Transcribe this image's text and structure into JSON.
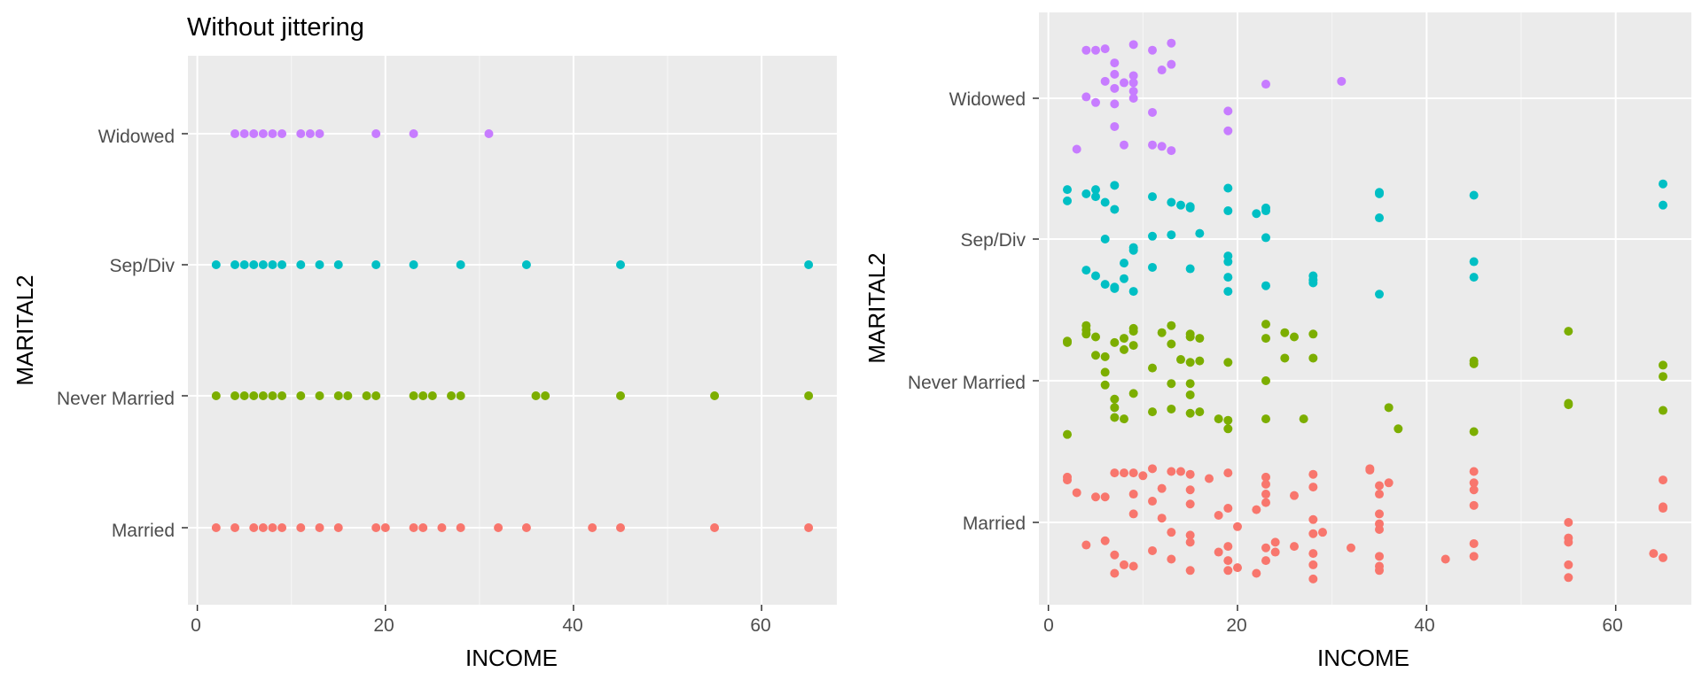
{
  "chart_data": [
    {
      "type": "scatter",
      "title": "Without jittering",
      "xlabel": "INCOME",
      "ylabel": "MARITAL2",
      "xlim": [
        -1,
        68
      ],
      "x_ticks": [
        "0",
        "20",
        "40",
        "60"
      ],
      "categories": [
        "Married",
        "Never Married",
        "Sep/Div",
        "Widowed"
      ],
      "grid": true,
      "legend": "none",
      "series": [
        {
          "category": "Married",
          "color": "#F8766D",
          "x": [
            2,
            4,
            6,
            7,
            8,
            9,
            11,
            13,
            15,
            19,
            20,
            23,
            24,
            26,
            28,
            32,
            35,
            42,
            45,
            55,
            65
          ]
        },
        {
          "category": "Never Married",
          "color": "#7CAE00",
          "x": [
            2,
            4,
            5,
            6,
            7,
            8,
            9,
            11,
            13,
            15,
            16,
            18,
            19,
            23,
            24,
            25,
            27,
            28,
            36,
            37,
            45,
            55,
            65
          ]
        },
        {
          "category": "Sep/Div",
          "color": "#00BFC4",
          "x": [
            2,
            4,
            5,
            6,
            7,
            8,
            9,
            11,
            13,
            15,
            19,
            23,
            28,
            35,
            45,
            65
          ]
        },
        {
          "category": "Widowed",
          "color": "#C77CFF",
          "x": [
            4,
            5,
            6,
            7,
            8,
            9,
            11,
            12,
            13,
            19,
            23,
            31
          ]
        }
      ]
    },
    {
      "type": "scatter",
      "title": "",
      "xlabel": "INCOME",
      "ylabel": "MARITAL2",
      "xlim": [
        -1,
        68
      ],
      "x_ticks": [
        "0",
        "20",
        "40",
        "60"
      ],
      "categories": [
        "Married",
        "Never Married",
        "Sep/Div",
        "Widowed"
      ],
      "grid": true,
      "legend": "none",
      "jitter": 0.4,
      "series": [
        {
          "category": "Married",
          "color": "#F8766D",
          "x": [
            2,
            2,
            3,
            4,
            5,
            6,
            6,
            7,
            7,
            7,
            8,
            8,
            9,
            9,
            9,
            9,
            10,
            11,
            11,
            11,
            12,
            12,
            13,
            13,
            13,
            14,
            15,
            15,
            15,
            15,
            15,
            15,
            17,
            18,
            18,
            19,
            19,
            19,
            19,
            19,
            20,
            20,
            22,
            22,
            23,
            23,
            23,
            23,
            23,
            23,
            24,
            24,
            26,
            26,
            28,
            28,
            28,
            28,
            28,
            28,
            28,
            29,
            32,
            34,
            34,
            35,
            35,
            35,
            35,
            35,
            35,
            35,
            35,
            36,
            42,
            45,
            45,
            45,
            45,
            45,
            45,
            55,
            55,
            55,
            55,
            55,
            64,
            65,
            65,
            65,
            65
          ],
          "y_offset": [
            0.32,
            0.3,
            0.21,
            -0.16,
            0.18,
            -0.13,
            0.18,
            -0.36,
            -0.23,
            0.35,
            0.35,
            -0.3,
            -0.31,
            0.06,
            0.2,
            0.35,
            0.33,
            0.38,
            0.15,
            -0.2,
            0.24,
            0.03,
            0.36,
            -0.07,
            -0.26,
            0.36,
            0.13,
            0.34,
            0.23,
            -0.09,
            -0.14,
            -0.34,
            0.31,
            -0.21,
            0.05,
            0.35,
            -0.17,
            -0.27,
            0.1,
            -0.34,
            -0.03,
            -0.32,
            0.09,
            -0.36,
            0.32,
            0.27,
            0.2,
            0.14,
            -0.18,
            -0.27,
            -0.14,
            -0.21,
            0.19,
            -0.17,
            0.34,
            0.25,
            0.02,
            -0.08,
            -0.22,
            -0.3,
            -0.4,
            -0.07,
            -0.18,
            0.37,
            0.38,
            0.26,
            0.2,
            0.06,
            -0.01,
            -0.05,
            -0.24,
            -0.31,
            -0.34,
            0.28,
            -0.26,
            0.36,
            0.28,
            0.23,
            0.12,
            -0.15,
            -0.24,
            0.0,
            -0.11,
            -0.14,
            -0.3,
            -0.39,
            -0.22,
            0.3,
            0.1,
            0.11,
            -0.25
          ]
        },
        {
          "category": "Never Married",
          "color": "#7CAE00",
          "x": [
            2,
            2,
            2,
            4,
            4,
            4,
            5,
            5,
            6,
            6,
            6,
            7,
            7,
            7,
            7,
            8,
            8,
            8,
            9,
            9,
            9,
            9,
            11,
            11,
            12,
            13,
            13,
            13,
            13,
            14,
            15,
            15,
            15,
            15,
            15,
            15,
            16,
            16,
            16,
            18,
            19,
            19,
            19,
            23,
            23,
            23,
            23,
            25,
            25,
            26,
            27,
            28,
            28,
            36,
            37,
            45,
            45,
            45,
            55,
            55,
            55,
            65,
            65,
            65
          ],
          "y_offset": [
            0.28,
            0.27,
            -0.38,
            0.39,
            0.36,
            0.33,
            0.31,
            0.18,
            0.06,
            -0.03,
            0.17,
            0.27,
            -0.13,
            -0.19,
            -0.26,
            0.3,
            0.22,
            -0.27,
            0.37,
            0.25,
            0.35,
            -0.09,
            0.09,
            -0.22,
            0.34,
            0.39,
            0.26,
            -0.02,
            -0.2,
            0.15,
            0.33,
            0.31,
            0.13,
            -0.02,
            -0.1,
            -0.23,
            0.3,
            0.14,
            -0.22,
            -0.27,
            0.13,
            -0.28,
            -0.34,
            0.4,
            0.3,
            0.0,
            -0.27,
            0.34,
            0.16,
            0.31,
            -0.27,
            0.33,
            0.16,
            -0.19,
            -0.34,
            0.12,
            0.14,
            -0.36,
            0.35,
            -0.16,
            -0.17,
            0.11,
            0.03,
            -0.21
          ]
        },
        {
          "category": "Sep/Div",
          "color": "#00BFC4",
          "x": [
            2,
            2,
            4,
            4,
            5,
            5,
            5,
            6,
            6,
            6,
            7,
            7,
            7,
            7,
            8,
            8,
            9,
            9,
            9,
            11,
            11,
            11,
            13,
            13,
            14,
            15,
            15,
            15,
            16,
            19,
            19,
            19,
            19,
            19,
            19,
            22,
            23,
            23,
            23,
            23,
            28,
            28,
            28,
            35,
            35,
            35,
            35,
            45,
            45,
            45,
            65,
            65
          ],
          "y_offset": [
            0.35,
            0.27,
            -0.22,
            0.32,
            0.35,
            0.3,
            -0.26,
            0.26,
            -0.32,
            0.0,
            0.38,
            0.21,
            -0.34,
            -0.35,
            -0.17,
            -0.28,
            -0.06,
            -0.08,
            -0.37,
            0.3,
            -0.2,
            0.02,
            0.26,
            0.03,
            0.24,
            0.23,
            0.22,
            -0.21,
            0.04,
            0.36,
            0.2,
            -0.12,
            -0.16,
            -0.27,
            -0.37,
            0.18,
            0.2,
            0.01,
            0.22,
            -0.33,
            -0.26,
            -0.29,
            -0.31,
            0.33,
            0.32,
            0.15,
            -0.39,
            0.31,
            -0.16,
            -0.27,
            0.39,
            0.24
          ]
        },
        {
          "category": "Widowed",
          "color": "#C77CFF",
          "x": [
            3,
            4,
            4,
            5,
            5,
            6,
            6,
            7,
            7,
            7,
            7,
            7,
            8,
            8,
            9,
            9,
            9,
            9,
            9,
            11,
            11,
            11,
            12,
            12,
            13,
            13,
            13,
            19,
            19,
            23,
            31
          ],
          "y_offset": [
            -0.36,
            0.34,
            0.01,
            -0.03,
            0.34,
            0.12,
            0.35,
            0.25,
            0.17,
            0.07,
            -0.04,
            -0.2,
            -0.33,
            0.11,
            0.38,
            0.16,
            0.11,
            0.05,
            0.0,
            0.34,
            -0.1,
            -0.33,
            0.2,
            -0.34,
            0.39,
            0.24,
            -0.37,
            -0.09,
            -0.23,
            0.1,
            0.12
          ]
        }
      ]
    }
  ]
}
